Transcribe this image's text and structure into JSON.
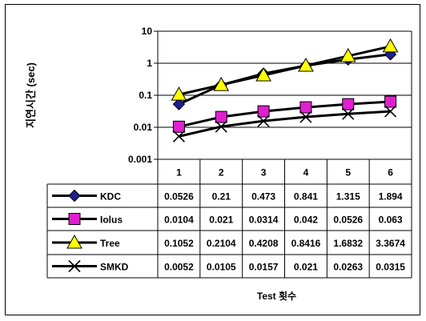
{
  "chart_data": {
    "type": "line",
    "ylabel": "지연시간 (sec)",
    "xlabel": "Test 횟수",
    "yscale": "log",
    "ylim": [
      0.001,
      10
    ],
    "yticks": [
      "10",
      "1",
      "0.1",
      "0.01",
      "0.001"
    ],
    "categories": [
      "1",
      "2",
      "3",
      "4",
      "5",
      "6"
    ],
    "grid": true,
    "legend": "data-table-left",
    "series": [
      {
        "name": "KDC",
        "marker": "diamond",
        "marker_color": "#1f1f8f",
        "values": [
          "0.0526",
          "0.21",
          "0.473",
          "0.841",
          "1.315",
          "1.894"
        ]
      },
      {
        "name": "Iolus",
        "marker": "square",
        "marker_color": "#e020d0",
        "values": [
          "0.0104",
          "0.021",
          "0.0314",
          "0.042",
          "0.0526",
          "0.063"
        ]
      },
      {
        "name": "Tree",
        "marker": "triangle",
        "marker_color": "#ffff00",
        "values": [
          "0.1052",
          "0.2104",
          "0.4208",
          "0.8416",
          "1.6832",
          "3.3674"
        ]
      },
      {
        "name": "SMKD",
        "marker": "x",
        "marker_color": "#000000",
        "values": [
          "0.0052",
          "0.0105",
          "0.0157",
          "0.021",
          "0.0263",
          "0.0315"
        ]
      }
    ]
  }
}
